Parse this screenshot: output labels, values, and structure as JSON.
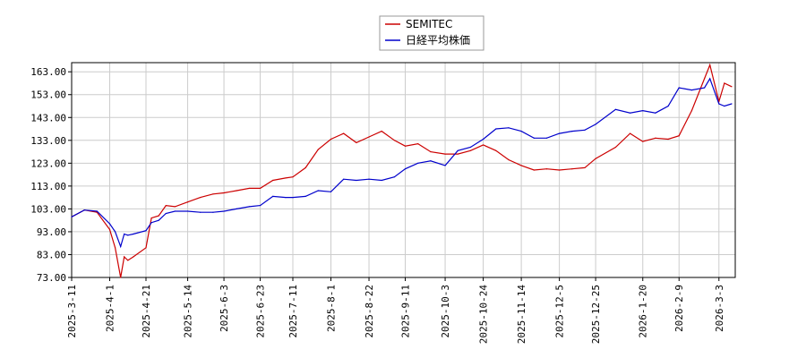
{
  "chart_data": {
    "type": "line",
    "title": "",
    "xlabel": "",
    "ylabel": "",
    "ylim": [
      73.0,
      167.0
    ],
    "yticks": [
      "163.00",
      "153.00",
      "143.00",
      "133.00",
      "123.00",
      "113.00",
      "103.00",
      "93.00",
      "83.00",
      "73.00"
    ],
    "ytick_values": [
      163,
      153,
      143,
      133,
      123,
      113,
      103,
      93,
      83,
      73
    ],
    "xticks": [
      "2025-3-11",
      "2025-4-1",
      "2025-4-21",
      "2025-5-14",
      "2025-6-3",
      "2025-6-23",
      "2025-7-11",
      "2025-8-1",
      "2025-8-22",
      "2025-9-11",
      "2025-10-3",
      "2025-10-24",
      "2025-11-14",
      "2025-12-5",
      "2025-12-25",
      "2026-1-20",
      "2026-2-9",
      "2026-3-3"
    ],
    "grid": true,
    "legend_position": "top-center",
    "series": [
      {
        "name": "SEMITEC",
        "color": "#cc0000",
        "x": [
          "2025-3-11",
          "2025-3-18",
          "2025-3-25",
          "2025-4-1",
          "2025-4-4",
          "2025-4-7",
          "2025-4-9",
          "2025-4-11",
          "2025-4-14",
          "2025-4-21",
          "2025-4-24",
          "2025-4-28",
          "2025-5-2",
          "2025-5-7",
          "2025-5-14",
          "2025-5-21",
          "2025-5-28",
          "2025-6-3",
          "2025-6-10",
          "2025-6-17",
          "2025-6-23",
          "2025-6-30",
          "2025-7-7",
          "2025-7-11",
          "2025-7-18",
          "2025-7-25",
          "2025-8-1",
          "2025-8-8",
          "2025-8-15",
          "2025-8-22",
          "2025-8-29",
          "2025-9-5",
          "2025-9-11",
          "2025-9-18",
          "2025-9-25",
          "2025-10-3",
          "2025-10-10",
          "2025-10-17",
          "2025-10-24",
          "2025-10-31",
          "2025-11-7",
          "2025-11-14",
          "2025-11-21",
          "2025-11-28",
          "2025-12-5",
          "2025-12-12",
          "2025-12-19",
          "2025-12-25",
          "2026-1-5",
          "2026-1-13",
          "2026-1-20",
          "2026-1-27",
          "2026-2-3",
          "2026-2-9",
          "2026-2-16",
          "2026-2-23",
          "2026-2-26",
          "2026-3-3",
          "2026-3-6",
          "2026-3-10"
        ],
        "values": [
          99.5,
          102.5,
          101.5,
          94.0,
          86.0,
          73.0,
          82.0,
          80.5,
          82.0,
          86.0,
          99.0,
          100.0,
          104.5,
          104.0,
          106.0,
          108.0,
          109.5,
          110.0,
          111.0,
          112.0,
          112.0,
          115.5,
          116.5,
          117.0,
          121.0,
          129.0,
          133.5,
          136.0,
          132.0,
          134.5,
          137.0,
          133.0,
          130.5,
          131.5,
          128.0,
          127.0,
          127.0,
          128.5,
          131.0,
          128.5,
          124.5,
          122.0,
          120.0,
          120.5,
          120.0,
          120.5,
          121.0,
          125.0,
          130.0,
          136.0,
          132.5,
          134.0,
          133.5,
          135.0,
          146.0,
          160.0,
          166.0,
          150.0,
          158.0,
          156.5
        ]
      },
      {
        "name": "日経平均株価",
        "color": "#0000cc",
        "x": [
          "2025-3-11",
          "2025-3-18",
          "2025-3-25",
          "2025-4-1",
          "2025-4-4",
          "2025-4-7",
          "2025-4-9",
          "2025-4-11",
          "2025-4-14",
          "2025-4-21",
          "2025-4-24",
          "2025-4-28",
          "2025-5-2",
          "2025-5-7",
          "2025-5-14",
          "2025-5-21",
          "2025-5-28",
          "2025-6-3",
          "2025-6-10",
          "2025-6-17",
          "2025-6-23",
          "2025-6-30",
          "2025-7-7",
          "2025-7-11",
          "2025-7-18",
          "2025-7-25",
          "2025-8-1",
          "2025-8-8",
          "2025-8-15",
          "2025-8-22",
          "2025-8-29",
          "2025-9-5",
          "2025-9-11",
          "2025-9-18",
          "2025-9-25",
          "2025-10-3",
          "2025-10-10",
          "2025-10-17",
          "2025-10-24",
          "2025-10-31",
          "2025-11-7",
          "2025-11-14",
          "2025-11-21",
          "2025-11-28",
          "2025-12-5",
          "2025-12-12",
          "2025-12-19",
          "2025-12-25",
          "2026-1-5",
          "2026-1-13",
          "2026-1-20",
          "2026-1-27",
          "2026-2-3",
          "2026-2-9",
          "2026-2-16",
          "2026-2-23",
          "2026-2-26",
          "2026-3-3",
          "2026-3-6",
          "2026-3-10"
        ],
        "values": [
          99.5,
          102.5,
          102.0,
          96.5,
          93.0,
          86.5,
          92.0,
          91.5,
          92.0,
          93.5,
          97.0,
          98.0,
          101.0,
          102.0,
          102.0,
          101.5,
          101.5,
          102.0,
          103.0,
          104.0,
          104.5,
          108.5,
          108.0,
          108.0,
          108.5,
          111.0,
          110.5,
          116.0,
          115.5,
          116.0,
          115.5,
          117.0,
          120.5,
          123.0,
          124.0,
          122.0,
          128.5,
          130.0,
          133.5,
          138.0,
          138.5,
          137.0,
          134.0,
          134.0,
          136.0,
          137.0,
          137.5,
          140.0,
          146.5,
          145.0,
          146.0,
          145.0,
          148.0,
          156.0,
          155.0,
          156.0,
          160.0,
          149.0,
          148.0,
          149.0
        ]
      }
    ]
  },
  "legend": {
    "items": [
      {
        "label": "SEMITEC",
        "color": "#cc0000"
      },
      {
        "label": "日経平均株価",
        "color": "#0000cc"
      }
    ]
  }
}
